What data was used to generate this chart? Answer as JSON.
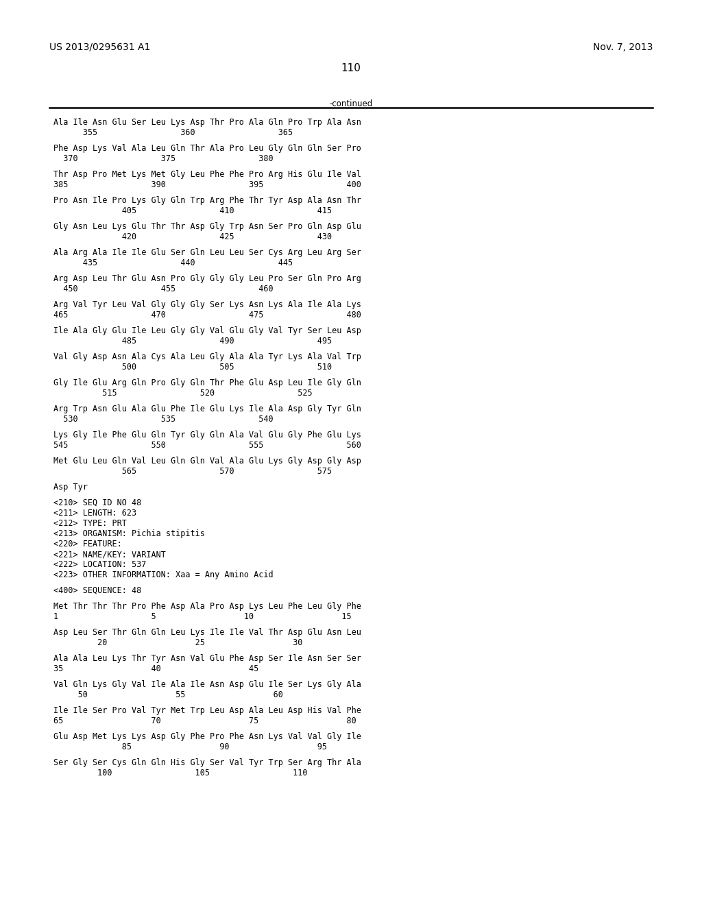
{
  "header_left": "US 2013/0295631 A1",
  "header_right": "Nov. 7, 2013",
  "page_number": "110",
  "continued_label": "-continued",
  "background_color": "#ffffff",
  "text_color": "#000000",
  "font_size": 8.5,
  "mono_font": "DejaVu Sans Mono",
  "sans_font": "DejaVu Sans",
  "header_font_size": 10,
  "page_num_font_size": 11,
  "line_rows": [
    {
      "text": "Ala Ile Asn Glu Ser Leu Lys Asp Thr Pro Ala Gln Pro Trp Ala Asn",
      "type": "seq"
    },
    {
      "text": "      355                 360                 365",
      "type": "num"
    },
    {
      "text": "",
      "type": "blank"
    },
    {
      "text": "Phe Asp Lys Val Ala Leu Gln Thr Ala Pro Leu Gly Gln Gln Ser Pro",
      "type": "seq"
    },
    {
      "text": "  370                 375                 380",
      "type": "num"
    },
    {
      "text": "",
      "type": "blank"
    },
    {
      "text": "Thr Asp Pro Met Lys Met Gly Leu Phe Phe Pro Arg His Glu Ile Val",
      "type": "seq"
    },
    {
      "text": "385                 390                 395                 400",
      "type": "num"
    },
    {
      "text": "",
      "type": "blank"
    },
    {
      "text": "Pro Asn Ile Pro Lys Gly Gln Trp Arg Phe Thr Tyr Asp Ala Asn Thr",
      "type": "seq"
    },
    {
      "text": "              405                 410                 415",
      "type": "num"
    },
    {
      "text": "",
      "type": "blank"
    },
    {
      "text": "Gly Asn Leu Lys Glu Thr Thr Asp Gly Trp Asn Ser Pro Gln Asp Glu",
      "type": "seq"
    },
    {
      "text": "              420                 425                 430",
      "type": "num"
    },
    {
      "text": "",
      "type": "blank"
    },
    {
      "text": "Ala Arg Ala Ile Ile Glu Ser Gln Leu Leu Ser Cys Arg Leu Arg Ser",
      "type": "seq"
    },
    {
      "text": "      435                 440                 445",
      "type": "num"
    },
    {
      "text": "",
      "type": "blank"
    },
    {
      "text": "Arg Asp Leu Thr Glu Asn Pro Gly Gly Gly Leu Pro Ser Gln Pro Arg",
      "type": "seq"
    },
    {
      "text": "  450                 455                 460",
      "type": "num"
    },
    {
      "text": "",
      "type": "blank"
    },
    {
      "text": "Arg Val Tyr Leu Val Gly Gly Gly Ser Lys Asn Lys Ala Ile Ala Lys",
      "type": "seq"
    },
    {
      "text": "465                 470                 475                 480",
      "type": "num"
    },
    {
      "text": "",
      "type": "blank"
    },
    {
      "text": "Ile Ala Gly Glu Ile Leu Gly Gly Val Glu Gly Val Tyr Ser Leu Asp",
      "type": "seq"
    },
    {
      "text": "              485                 490                 495",
      "type": "num"
    },
    {
      "text": "",
      "type": "blank"
    },
    {
      "text": "Val Gly Asp Asn Ala Cys Ala Leu Gly Ala Ala Tyr Lys Ala Val Trp",
      "type": "seq"
    },
    {
      "text": "              500                 505                 510",
      "type": "num"
    },
    {
      "text": "",
      "type": "blank"
    },
    {
      "text": "Gly Ile Glu Arg Gln Pro Gly Gln Thr Phe Glu Asp Leu Ile Gly Gln",
      "type": "seq"
    },
    {
      "text": "          515                 520                 525",
      "type": "num"
    },
    {
      "text": "",
      "type": "blank"
    },
    {
      "text": "Arg Trp Asn Glu Ala Glu Phe Ile Glu Lys Ile Ala Asp Gly Tyr Gln",
      "type": "seq"
    },
    {
      "text": "  530                 535                 540",
      "type": "num"
    },
    {
      "text": "",
      "type": "blank"
    },
    {
      "text": "Lys Gly Ile Phe Glu Gln Tyr Gly Gln Ala Val Glu Gly Phe Glu Lys",
      "type": "seq"
    },
    {
      "text": "545                 550                 555                 560",
      "type": "num"
    },
    {
      "text": "",
      "type": "blank"
    },
    {
      "text": "Met Glu Leu Gln Val Leu Gln Gln Val Ala Glu Lys Gly Asp Gly Asp",
      "type": "seq"
    },
    {
      "text": "              565                 570                 575",
      "type": "num"
    },
    {
      "text": "",
      "type": "blank"
    },
    {
      "text": "Asp Tyr",
      "type": "seq"
    },
    {
      "text": "",
      "type": "blank"
    },
    {
      "text": "<210> SEQ ID NO 48",
      "type": "meta"
    },
    {
      "text": "<211> LENGTH: 623",
      "type": "meta"
    },
    {
      "text": "<212> TYPE: PRT",
      "type": "meta"
    },
    {
      "text": "<213> ORGANISM: Pichia stipitis",
      "type": "meta"
    },
    {
      "text": "<220> FEATURE:",
      "type": "meta"
    },
    {
      "text": "<221> NAME/KEY: VARIANT",
      "type": "meta"
    },
    {
      "text": "<222> LOCATION: 537",
      "type": "meta"
    },
    {
      "text": "<223> OTHER INFORMATION: Xaa = Any Amino Acid",
      "type": "meta"
    },
    {
      "text": "",
      "type": "blank"
    },
    {
      "text": "<400> SEQUENCE: 48",
      "type": "meta"
    },
    {
      "text": "",
      "type": "blank"
    },
    {
      "text": "Met Thr Thr Thr Pro Phe Asp Ala Pro Asp Lys Leu Phe Leu Gly Phe",
      "type": "seq"
    },
    {
      "text": "1                   5                  10                  15",
      "type": "num"
    },
    {
      "text": "",
      "type": "blank"
    },
    {
      "text": "Asp Leu Ser Thr Gln Gln Leu Lys Ile Ile Val Thr Asp Glu Asn Leu",
      "type": "seq"
    },
    {
      "text": "         20                  25                  30",
      "type": "num"
    },
    {
      "text": "",
      "type": "blank"
    },
    {
      "text": "Ala Ala Leu Lys Thr Tyr Asn Val Glu Phe Asp Ser Ile Asn Ser Ser",
      "type": "seq"
    },
    {
      "text": "35                  40                  45",
      "type": "num"
    },
    {
      "text": "",
      "type": "blank"
    },
    {
      "text": "Val Gln Lys Gly Val Ile Ala Ile Asn Asp Glu Ile Ser Lys Gly Ala",
      "type": "seq"
    },
    {
      "text": "     50                  55                  60",
      "type": "num"
    },
    {
      "text": "",
      "type": "blank"
    },
    {
      "text": "Ile Ile Ser Pro Val Tyr Met Trp Leu Asp Ala Leu Asp His Val Phe",
      "type": "seq"
    },
    {
      "text": "65                  70                  75                  80",
      "type": "num"
    },
    {
      "text": "",
      "type": "blank"
    },
    {
      "text": "Glu Asp Met Lys Lys Asp Gly Phe Pro Phe Asn Lys Val Val Gly Ile",
      "type": "seq"
    },
    {
      "text": "              85                  90                  95",
      "type": "num"
    },
    {
      "text": "",
      "type": "blank"
    },
    {
      "text": "Ser Gly Ser Cys Gln Gln His Gly Ser Val Tyr Trp Ser Arg Thr Ala",
      "type": "seq"
    },
    {
      "text": "         100                 105                 110",
      "type": "num"
    }
  ]
}
